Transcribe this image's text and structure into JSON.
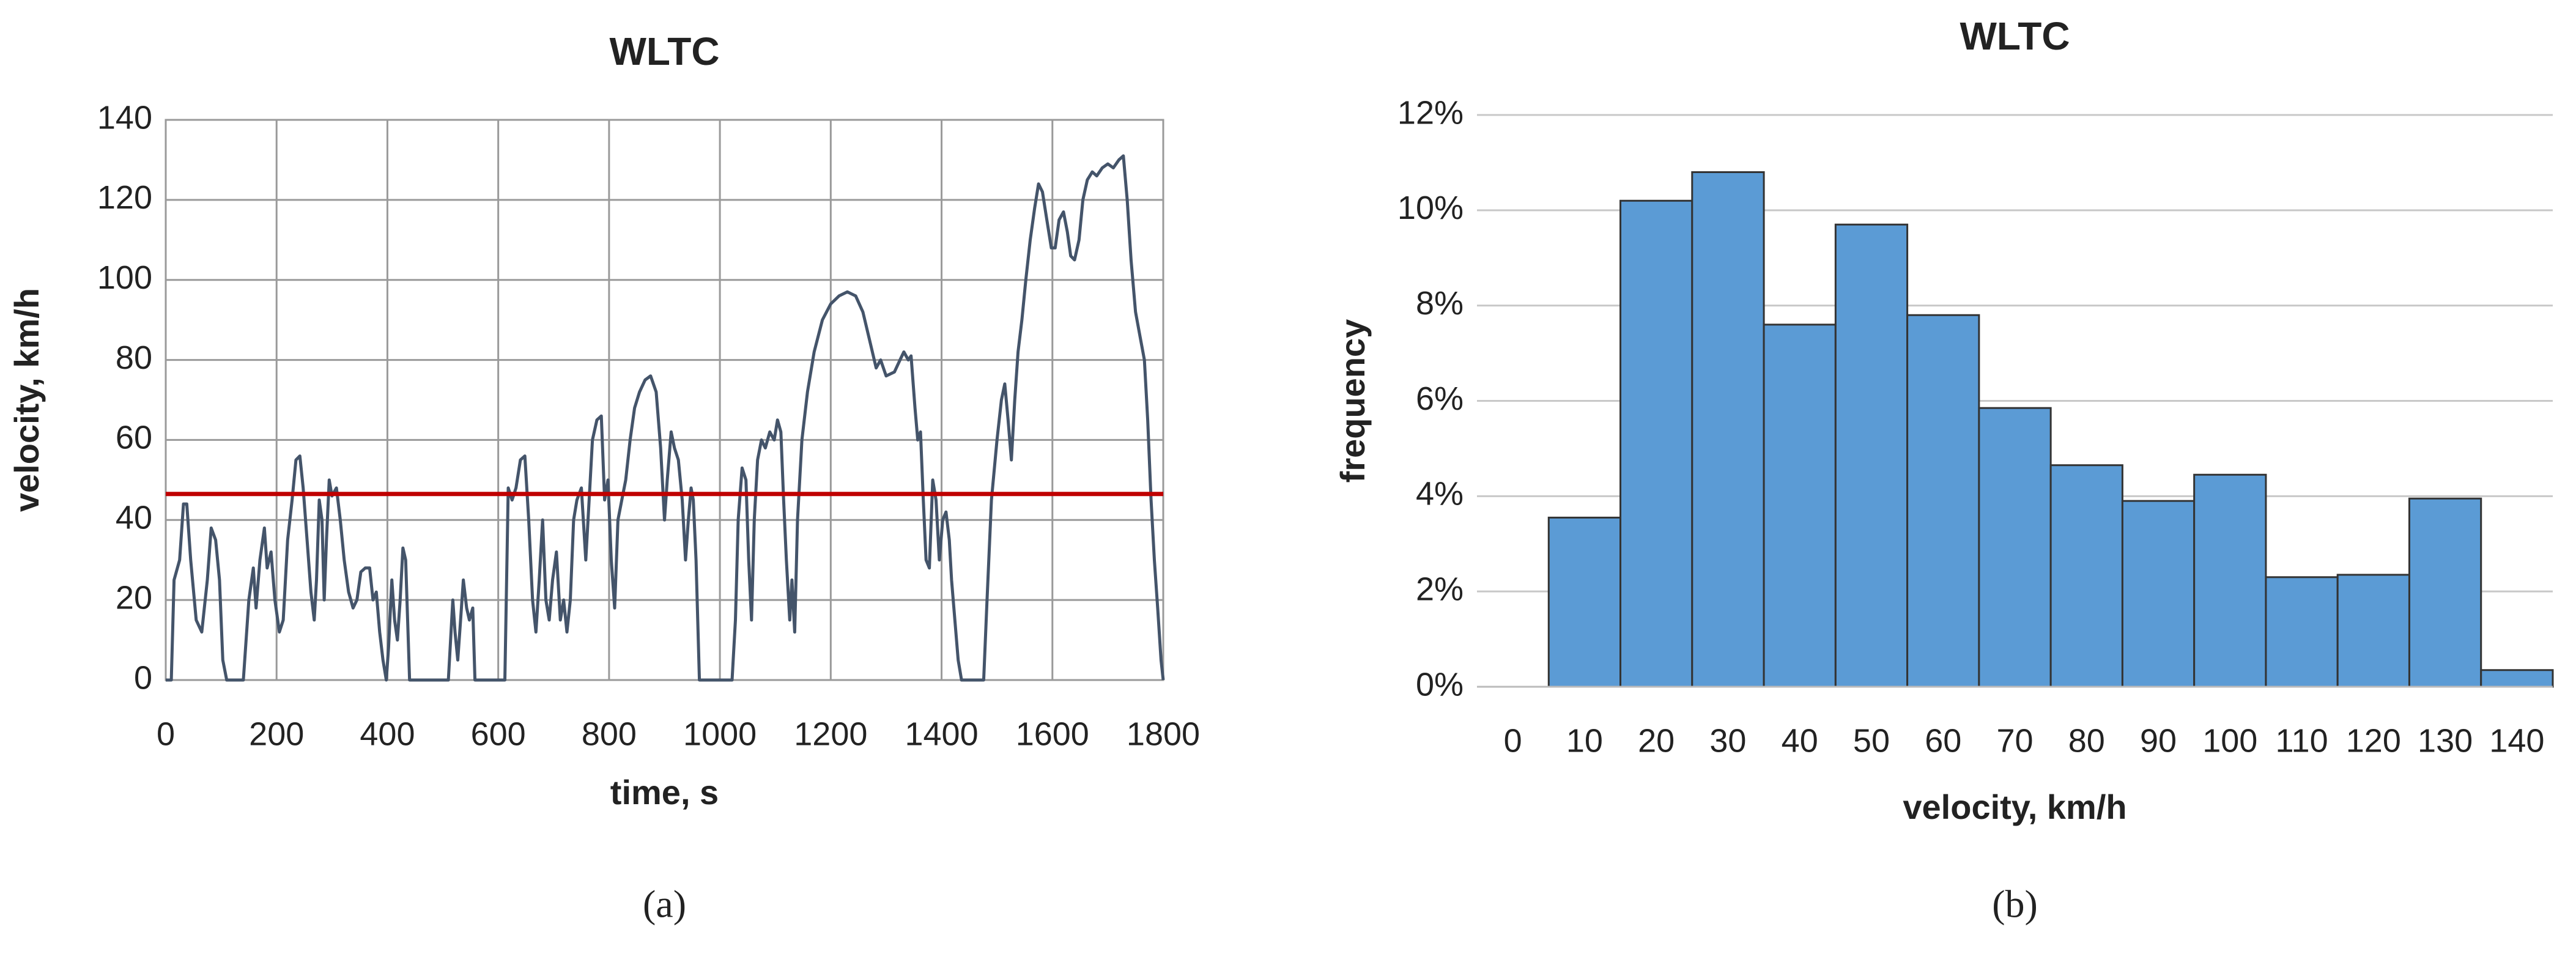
{
  "chart_data": [
    {
      "type": "line",
      "title": "WLTC",
      "xlabel": "time, s",
      "ylabel": "velocity, km/h",
      "caption": "(a)",
      "color": "#44546a",
      "grid": true,
      "xlim": [
        0,
        1800
      ],
      "xticks": [
        0,
        200,
        400,
        600,
        800,
        1000,
        1200,
        1400,
        1600,
        1800
      ],
      "ylim": [
        0,
        140
      ],
      "yticks": [
        0,
        20,
        40,
        60,
        80,
        100,
        120,
        140
      ],
      "reference_line": {
        "value": 46.5,
        "color": "#c00000"
      },
      "x": [
        0,
        10,
        15,
        25,
        32,
        38,
        45,
        55,
        65,
        75,
        82,
        90,
        97,
        103,
        110,
        140,
        150,
        158,
        163,
        170,
        178,
        183,
        190,
        197,
        205,
        212,
        220,
        228,
        235,
        242,
        248,
        255,
        262,
        268,
        272,
        277,
        282,
        286,
        290,
        295,
        300,
        308,
        315,
        322,
        330,
        338,
        345,
        352,
        360,
        368,
        374,
        380,
        386,
        392,
        398,
        402,
        408,
        413,
        418,
        423,
        428,
        433,
        440,
        510,
        518,
        522,
        527,
        532,
        537,
        543,
        548,
        554,
        558,
        612,
        618,
        625,
        632,
        640,
        648,
        655,
        662,
        668,
        674,
        680,
        686,
        692,
        698,
        705,
        712,
        718,
        724,
        730,
        736,
        742,
        750,
        758,
        764,
        770,
        778,
        786,
        792,
        798,
        804,
        810,
        816,
        823,
        830,
        838,
        846,
        855,
        865,
        875,
        885,
        893,
        900,
        905,
        912,
        918,
        925,
        932,
        938,
        943,
        948,
        952,
        957,
        963,
        1022,
        1028,
        1033,
        1040,
        1047,
        1052,
        1057,
        1062,
        1068,
        1075,
        1082,
        1090,
        1098,
        1104,
        1110,
        1115,
        1120,
        1126,
        1130,
        1135,
        1140,
        1148,
        1158,
        1170,
        1185,
        1200,
        1215,
        1230,
        1245,
        1258,
        1270,
        1282,
        1290,
        1300,
        1315,
        1325,
        1332,
        1340,
        1345,
        1352,
        1357,
        1362,
        1367,
        1372,
        1378,
        1384,
        1390,
        1396,
        1402,
        1408,
        1414,
        1418,
        1424,
        1430,
        1436,
        1476,
        1482,
        1490,
        1500,
        1508,
        1514,
        1520,
        1526,
        1532,
        1538,
        1545,
        1552,
        1560,
        1568,
        1575,
        1582,
        1590,
        1598,
        1605,
        1612,
        1620,
        1627,
        1633,
        1640,
        1648,
        1655,
        1663,
        1672,
        1680,
        1690,
        1700,
        1710,
        1720,
        1728,
        1735,
        1742,
        1750,
        1758,
        1766,
        1772,
        1778,
        1784,
        1790,
        1796,
        1800
      ],
      "values": [
        0,
        0,
        25,
        30,
        44,
        44,
        30,
        15,
        12,
        25,
        38,
        35,
        25,
        5,
        0,
        0,
        20,
        28,
        18,
        30,
        38,
        28,
        32,
        20,
        12,
        15,
        35,
        45,
        55,
        56,
        48,
        35,
        22,
        15,
        25,
        45,
        40,
        20,
        35,
        50,
        46,
        48,
        40,
        30,
        22,
        18,
        20,
        27,
        28,
        28,
        20,
        22,
        12,
        5,
        0,
        8,
        25,
        15,
        10,
        20,
        33,
        30,
        0,
        0,
        20,
        12,
        5,
        15,
        25,
        18,
        15,
        18,
        0,
        0,
        48,
        45,
        48,
        55,
        56,
        40,
        20,
        12,
        25,
        40,
        20,
        15,
        25,
        32,
        15,
        20,
        12,
        20,
        40,
        45,
        48,
        30,
        45,
        60,
        65,
        66,
        45,
        50,
        30,
        18,
        40,
        45,
        50,
        60,
        68,
        72,
        75,
        76,
        72,
        58,
        40,
        50,
        62,
        58,
        55,
        45,
        30,
        40,
        48,
        45,
        30,
        0,
        0,
        15,
        40,
        53,
        50,
        30,
        15,
        40,
        55,
        60,
        58,
        62,
        60,
        65,
        62,
        45,
        30,
        15,
        25,
        12,
        40,
        60,
        72,
        82,
        90,
        94,
        96,
        97,
        96,
        92,
        85,
        78,
        80,
        76,
        77,
        80,
        82,
        80,
        81,
        68,
        60,
        62,
        45,
        30,
        28,
        50,
        45,
        30,
        40,
        42,
        35,
        25,
        15,
        5,
        0,
        0,
        20,
        45,
        60,
        70,
        74,
        65,
        55,
        70,
        82,
        90,
        100,
        110,
        118,
        124,
        122,
        115,
        108,
        108,
        115,
        117,
        112,
        106,
        105,
        110,
        120,
        125,
        127,
        126,
        128,
        129,
        128,
        130,
        131,
        120,
        105,
        92,
        86,
        80,
        65,
        45,
        30,
        18,
        5,
        0
      ]
    },
    {
      "type": "bar",
      "title": "WLTC",
      "xlabel": "velocity, km/h",
      "ylabel": "frequency",
      "caption": "(b)",
      "color": "#5b9bd5",
      "grid": true,
      "categories": [
        "0",
        "10",
        "20",
        "30",
        "40",
        "50",
        "60",
        "70",
        "80",
        "90",
        "100",
        "110",
        "120",
        "130",
        "140"
      ],
      "values": [
        0,
        3.55,
        10.2,
        10.8,
        7.6,
        9.7,
        7.8,
        5.85,
        4.65,
        3.9,
        4.45,
        2.3,
        2.35,
        3.95,
        0.35
      ],
      "ylim": [
        0,
        12
      ],
      "yticks": [
        {
          "value": 0,
          "label": "0%"
        },
        {
          "value": 2,
          "label": "2%"
        },
        {
          "value": 4,
          "label": "4%"
        },
        {
          "value": 6,
          "label": "6%"
        },
        {
          "value": 8,
          "label": "8%"
        },
        {
          "value": 10,
          "label": "10%"
        },
        {
          "value": 12,
          "label": "12%"
        }
      ]
    }
  ]
}
